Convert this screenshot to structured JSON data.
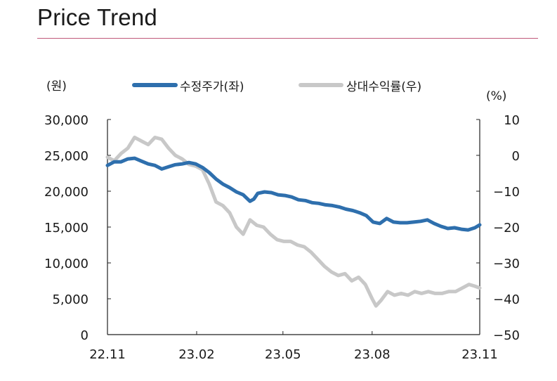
{
  "page": {
    "title": "Price Trend"
  },
  "colors": {
    "accent_rule": "#c0587a",
    "price": "#2e6fad",
    "relative": "#c8c8c8",
    "axis": "#222222"
  },
  "chart_data": {
    "type": "line",
    "title": "Price Trend",
    "left_unit": "(원)",
    "right_unit": "(%)",
    "x_ticks": [
      "22.11",
      "23.02",
      "23.05",
      "23.08",
      "23.11"
    ],
    "left_axis": {
      "ylim": [
        0,
        30000
      ],
      "ticks": [
        "0",
        "5,000",
        "10,000",
        "15,000",
        "20,000",
        "25,000",
        "30,000"
      ]
    },
    "right_axis": {
      "ylim": [
        -50,
        10
      ],
      "ticks": [
        "−50",
        "−40",
        "−30",
        "−20",
        "−10",
        "0",
        "10"
      ]
    },
    "legend_position": "top",
    "grid": false,
    "series": [
      {
        "name": "수정주가(좌)",
        "axis": "left",
        "points": [
          [
            "2022-11-01",
            23600
          ],
          [
            "2022-11-08",
            24100
          ],
          [
            "2022-11-15",
            24100
          ],
          [
            "2022-11-22",
            24500
          ],
          [
            "2022-11-29",
            24600
          ],
          [
            "2022-12-06",
            24200
          ],
          [
            "2022-12-13",
            23800
          ],
          [
            "2022-12-20",
            23600
          ],
          [
            "2022-12-27",
            23100
          ],
          [
            "2023-01-03",
            23400
          ],
          [
            "2023-01-10",
            23700
          ],
          [
            "2023-01-17",
            23800
          ],
          [
            "2023-01-24",
            24000
          ],
          [
            "2023-01-31",
            23800
          ],
          [
            "2023-02-07",
            23300
          ],
          [
            "2023-02-14",
            22600
          ],
          [
            "2023-02-21",
            21700
          ],
          [
            "2023-02-28",
            21000
          ],
          [
            "2023-03-07",
            20500
          ],
          [
            "2023-03-14",
            19900
          ],
          [
            "2023-03-21",
            19500
          ],
          [
            "2023-03-28",
            18600
          ],
          [
            "2023-04-01",
            18900
          ],
          [
            "2023-04-05",
            19700
          ],
          [
            "2023-04-12",
            19900
          ],
          [
            "2023-04-19",
            19800
          ],
          [
            "2023-04-26",
            19500
          ],
          [
            "2023-05-03",
            19400
          ],
          [
            "2023-05-10",
            19200
          ],
          [
            "2023-05-17",
            18800
          ],
          [
            "2023-05-24",
            18700
          ],
          [
            "2023-05-31",
            18400
          ],
          [
            "2023-06-07",
            18300
          ],
          [
            "2023-06-14",
            18100
          ],
          [
            "2023-06-21",
            18000
          ],
          [
            "2023-06-28",
            17800
          ],
          [
            "2023-07-05",
            17500
          ],
          [
            "2023-07-12",
            17300
          ],
          [
            "2023-07-19",
            17000
          ],
          [
            "2023-07-26",
            16600
          ],
          [
            "2023-08-02",
            15700
          ],
          [
            "2023-08-09",
            15500
          ],
          [
            "2023-08-16",
            16200
          ],
          [
            "2023-08-23",
            15700
          ],
          [
            "2023-08-30",
            15600
          ],
          [
            "2023-09-06",
            15600
          ],
          [
            "2023-09-13",
            15700
          ],
          [
            "2023-09-20",
            15800
          ],
          [
            "2023-09-27",
            16000
          ],
          [
            "2023-10-04",
            15500
          ],
          [
            "2023-10-11",
            15100
          ],
          [
            "2023-10-18",
            14800
          ],
          [
            "2023-10-25",
            14900
          ],
          [
            "2023-11-01",
            14700
          ],
          [
            "2023-11-08",
            14600
          ],
          [
            "2023-11-15",
            14900
          ],
          [
            "2023-11-20",
            15300
          ]
        ]
      },
      {
        "name": "상대수익률(우)",
        "axis": "right",
        "points": [
          [
            "2022-11-01",
            -0.5
          ],
          [
            "2022-11-08",
            -1.5
          ],
          [
            "2022-11-15",
            0.5
          ],
          [
            "2022-11-22",
            2
          ],
          [
            "2022-11-29",
            5
          ],
          [
            "2022-12-06",
            4
          ],
          [
            "2022-12-13",
            3
          ],
          [
            "2022-12-20",
            5
          ],
          [
            "2022-12-27",
            4.5
          ],
          [
            "2023-01-03",
            2
          ],
          [
            "2023-01-10",
            0
          ],
          [
            "2023-01-17",
            -1
          ],
          [
            "2023-01-24",
            -2.5
          ],
          [
            "2023-01-31",
            -3
          ],
          [
            "2023-02-07",
            -4
          ],
          [
            "2023-02-14",
            -8
          ],
          [
            "2023-02-21",
            -13
          ],
          [
            "2023-02-28",
            -14
          ],
          [
            "2023-03-07",
            -16
          ],
          [
            "2023-03-14",
            -20
          ],
          [
            "2023-03-21",
            -22
          ],
          [
            "2023-03-28",
            -18
          ],
          [
            "2023-04-04",
            -19.5
          ],
          [
            "2023-04-11",
            -20
          ],
          [
            "2023-04-18",
            -22
          ],
          [
            "2023-04-25",
            -23.5
          ],
          [
            "2023-05-02",
            -24
          ],
          [
            "2023-05-09",
            -24
          ],
          [
            "2023-05-16",
            -25
          ],
          [
            "2023-05-23",
            -25.5
          ],
          [
            "2023-05-30",
            -27
          ],
          [
            "2023-06-06",
            -29
          ],
          [
            "2023-06-13",
            -31
          ],
          [
            "2023-06-20",
            -32.5
          ],
          [
            "2023-06-27",
            -33.5
          ],
          [
            "2023-07-04",
            -33
          ],
          [
            "2023-07-11",
            -35
          ],
          [
            "2023-07-18",
            -34
          ],
          [
            "2023-07-25",
            -36
          ],
          [
            "2023-08-01",
            -40
          ],
          [
            "2023-08-05",
            -42
          ],
          [
            "2023-08-10",
            -40.5
          ],
          [
            "2023-08-17",
            -38
          ],
          [
            "2023-08-24",
            -39
          ],
          [
            "2023-08-31",
            -38.5
          ],
          [
            "2023-09-07",
            -39
          ],
          [
            "2023-09-14",
            -38
          ],
          [
            "2023-09-21",
            -38.5
          ],
          [
            "2023-09-28",
            -38
          ],
          [
            "2023-10-05",
            -38.5
          ],
          [
            "2023-10-12",
            -38.5
          ],
          [
            "2023-10-19",
            -38
          ],
          [
            "2023-10-26",
            -38
          ],
          [
            "2023-11-02",
            -37
          ],
          [
            "2023-11-09",
            -36
          ],
          [
            "2023-11-15",
            -36.5
          ],
          [
            "2023-11-20",
            -37
          ]
        ]
      }
    ]
  }
}
